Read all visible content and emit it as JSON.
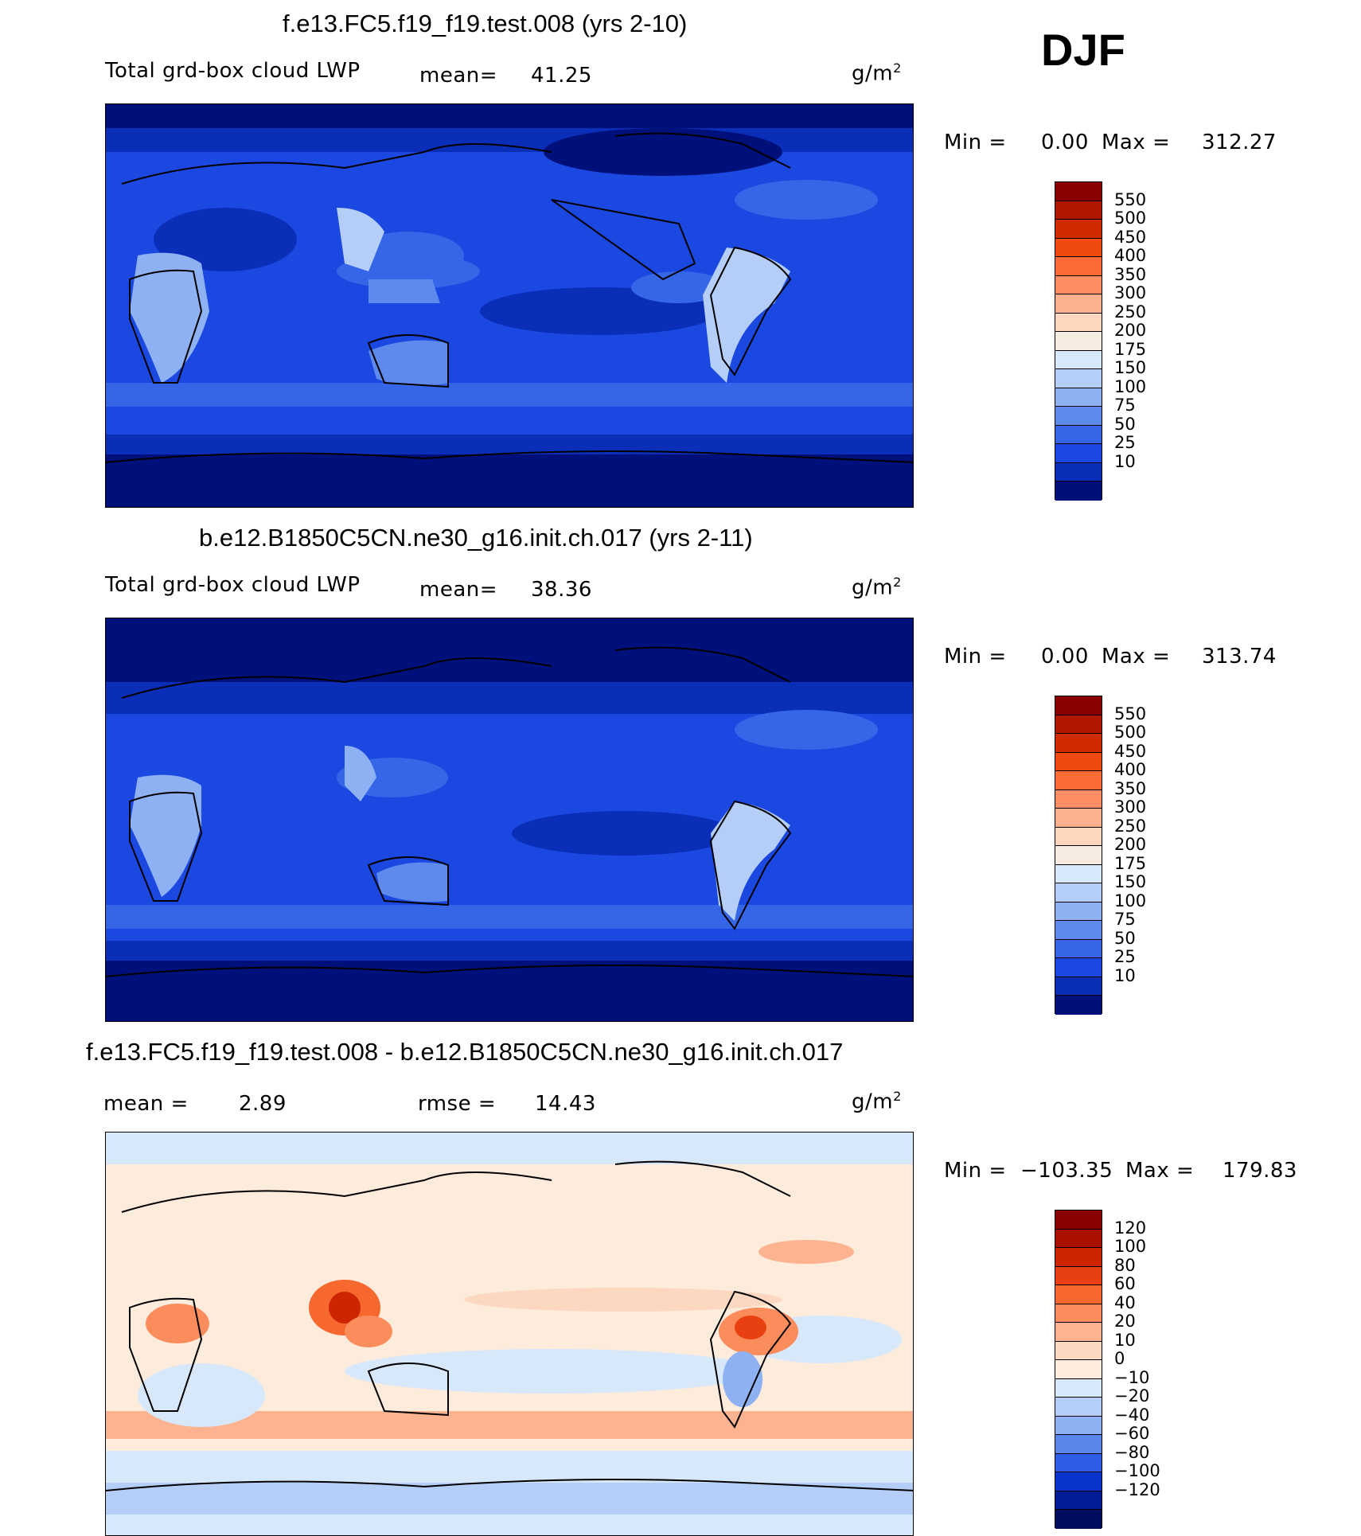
{
  "season_label": "DJF",
  "panels": [
    {
      "id": "test",
      "title": "f.e13.FC5.f19_f19.test.008 (yrs 2-10)",
      "variable_label": "Total grd-box cloud LWP",
      "mean_label": "mean=",
      "mean_value": "41.25",
      "units": "g/m",
      "units_sup": "2",
      "minmax": {
        "min_label": "Min =",
        "min_value": "0.00",
        "max_label": "Max =",
        "max_value": "312.27"
      },
      "colorbar": {
        "ticks": [
          "550",
          "500",
          "450",
          "400",
          "350",
          "300",
          "250",
          "200",
          "175",
          "150",
          "100",
          "75",
          "50",
          "25",
          "10"
        ],
        "colors": [
          "#8b0000",
          "#b01800",
          "#d22a00",
          "#f04a10",
          "#fa6a36",
          "#fc8d62",
          "#fdb08e",
          "#fdd6bd",
          "#f5ebe0",
          "#d7e8fb",
          "#b4cef7",
          "#8db1f2",
          "#5d8aec",
          "#3666e8",
          "#1a48e0",
          "#0a2eb8",
          "#00107a"
        ]
      }
    },
    {
      "id": "control",
      "title": "b.e12.B1850C5CN.ne30_g16.init.ch.017 (yrs 2-11)",
      "variable_label": "Total grd-box cloud LWP",
      "mean_label": "mean=",
      "mean_value": "38.36",
      "units": "g/m",
      "units_sup": "2",
      "minmax": {
        "min_label": "Min =",
        "min_value": "0.00",
        "max_label": "Max =",
        "max_value": "313.74"
      },
      "colorbar": {
        "ticks": [
          "550",
          "500",
          "450",
          "400",
          "350",
          "300",
          "250",
          "200",
          "175",
          "150",
          "100",
          "75",
          "50",
          "25",
          "10"
        ],
        "colors": [
          "#8b0000",
          "#b01800",
          "#d22a00",
          "#f04a10",
          "#fa6a36",
          "#fc8d62",
          "#fdb08e",
          "#fdd6bd",
          "#f5ebe0",
          "#d7e8fb",
          "#b4cef7",
          "#8db1f2",
          "#5d8aec",
          "#3666e8",
          "#1a48e0",
          "#0a2eb8",
          "#00107a"
        ]
      }
    },
    {
      "id": "difference",
      "title": "f.e13.FC5.f19_f19.test.008 - b.e12.B1850C5CN.ne30_g16.init.ch.017",
      "mean_label": "mean =",
      "mean_value": "2.89",
      "rmse_label": "rmse =",
      "rmse_value": "14.43",
      "units": "g/m",
      "units_sup": "2",
      "minmax": {
        "min_label": "Min =",
        "min_value": "−103.35",
        "max_label": "Max =",
        "max_value": "179.83"
      },
      "colorbar": {
        "ticks": [
          "120",
          "100",
          "80",
          "60",
          "40",
          "20",
          "10",
          "0",
          "−10",
          "−20",
          "−40",
          "−60",
          "−80",
          "−100",
          "−120"
        ],
        "colors": [
          "#8b0000",
          "#aa1000",
          "#cc2500",
          "#e84010",
          "#f6682e",
          "#fb8c5c",
          "#fdb38f",
          "#fdd8c0",
          "#fdebdc",
          "#d7e8fb",
          "#b4cef7",
          "#8db1f2",
          "#5a86ec",
          "#2e5ee6",
          "#0a34cc",
          "#001d96",
          "#000c5e"
        ]
      }
    }
  ]
}
